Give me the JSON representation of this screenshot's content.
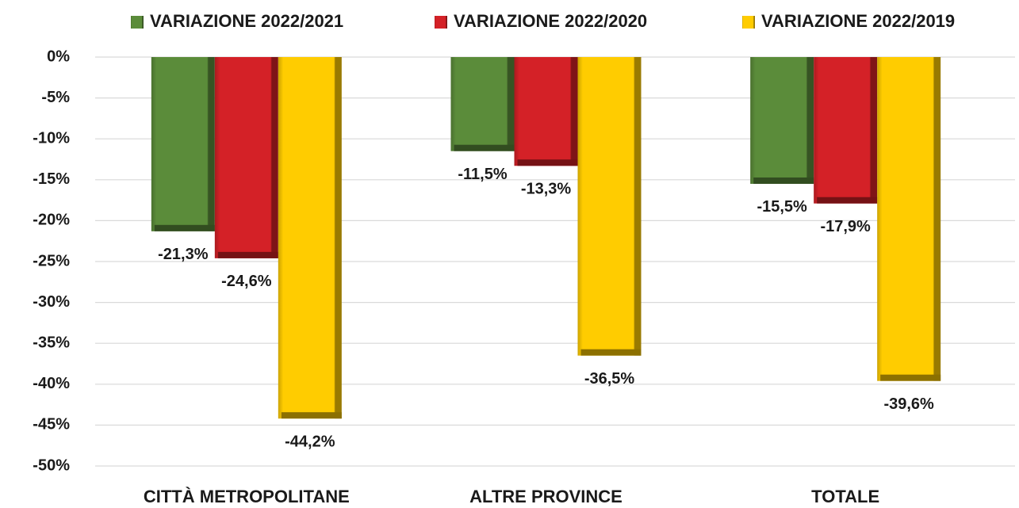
{
  "chart_data": {
    "type": "bar",
    "categories": [
      "CITTÀ METROPOLITANE",
      "ALTRE PROVINCE",
      "TOTALE"
    ],
    "series": [
      {
        "name": "VARIAZIONE 2022/2021",
        "color": "#5b8c3a",
        "values": [
          -21.3,
          -11.5,
          -15.5
        ],
        "value_labels": [
          "-21,3%",
          "-11,5%",
          "-15,5%"
        ]
      },
      {
        "name": "VARIAZIONE 2022/2020",
        "color": "#d42127",
        "values": [
          -24.6,
          -13.3,
          -17.9
        ],
        "value_labels": [
          "-24,6%",
          "-13,3%",
          "-17,9%"
        ]
      },
      {
        "name": "VARIAZIONE 2022/2019",
        "color": "#ffcc00",
        "values": [
          -44.2,
          -36.5,
          -39.6
        ],
        "value_labels": [
          "-44,2%",
          "-36,5%",
          "-39,6%"
        ]
      }
    ],
    "ylim": [
      -50,
      0
    ],
    "yticks": [
      {
        "value": 0,
        "label": "0%"
      },
      {
        "value": -5,
        "label": "-5%"
      },
      {
        "value": -10,
        "label": "-10%"
      },
      {
        "value": -15,
        "label": "-15%"
      },
      {
        "value": -20,
        "label": "-20%"
      },
      {
        "value": -25,
        "label": "-25%"
      },
      {
        "value": -30,
        "label": "-30%"
      },
      {
        "value": -35,
        "label": "-35%"
      },
      {
        "value": -40,
        "label": "-40%"
      },
      {
        "value": -45,
        "label": "-45%"
      },
      {
        "value": -50,
        "label": "-50%"
      }
    ],
    "grid": true,
    "legend": "top"
  }
}
